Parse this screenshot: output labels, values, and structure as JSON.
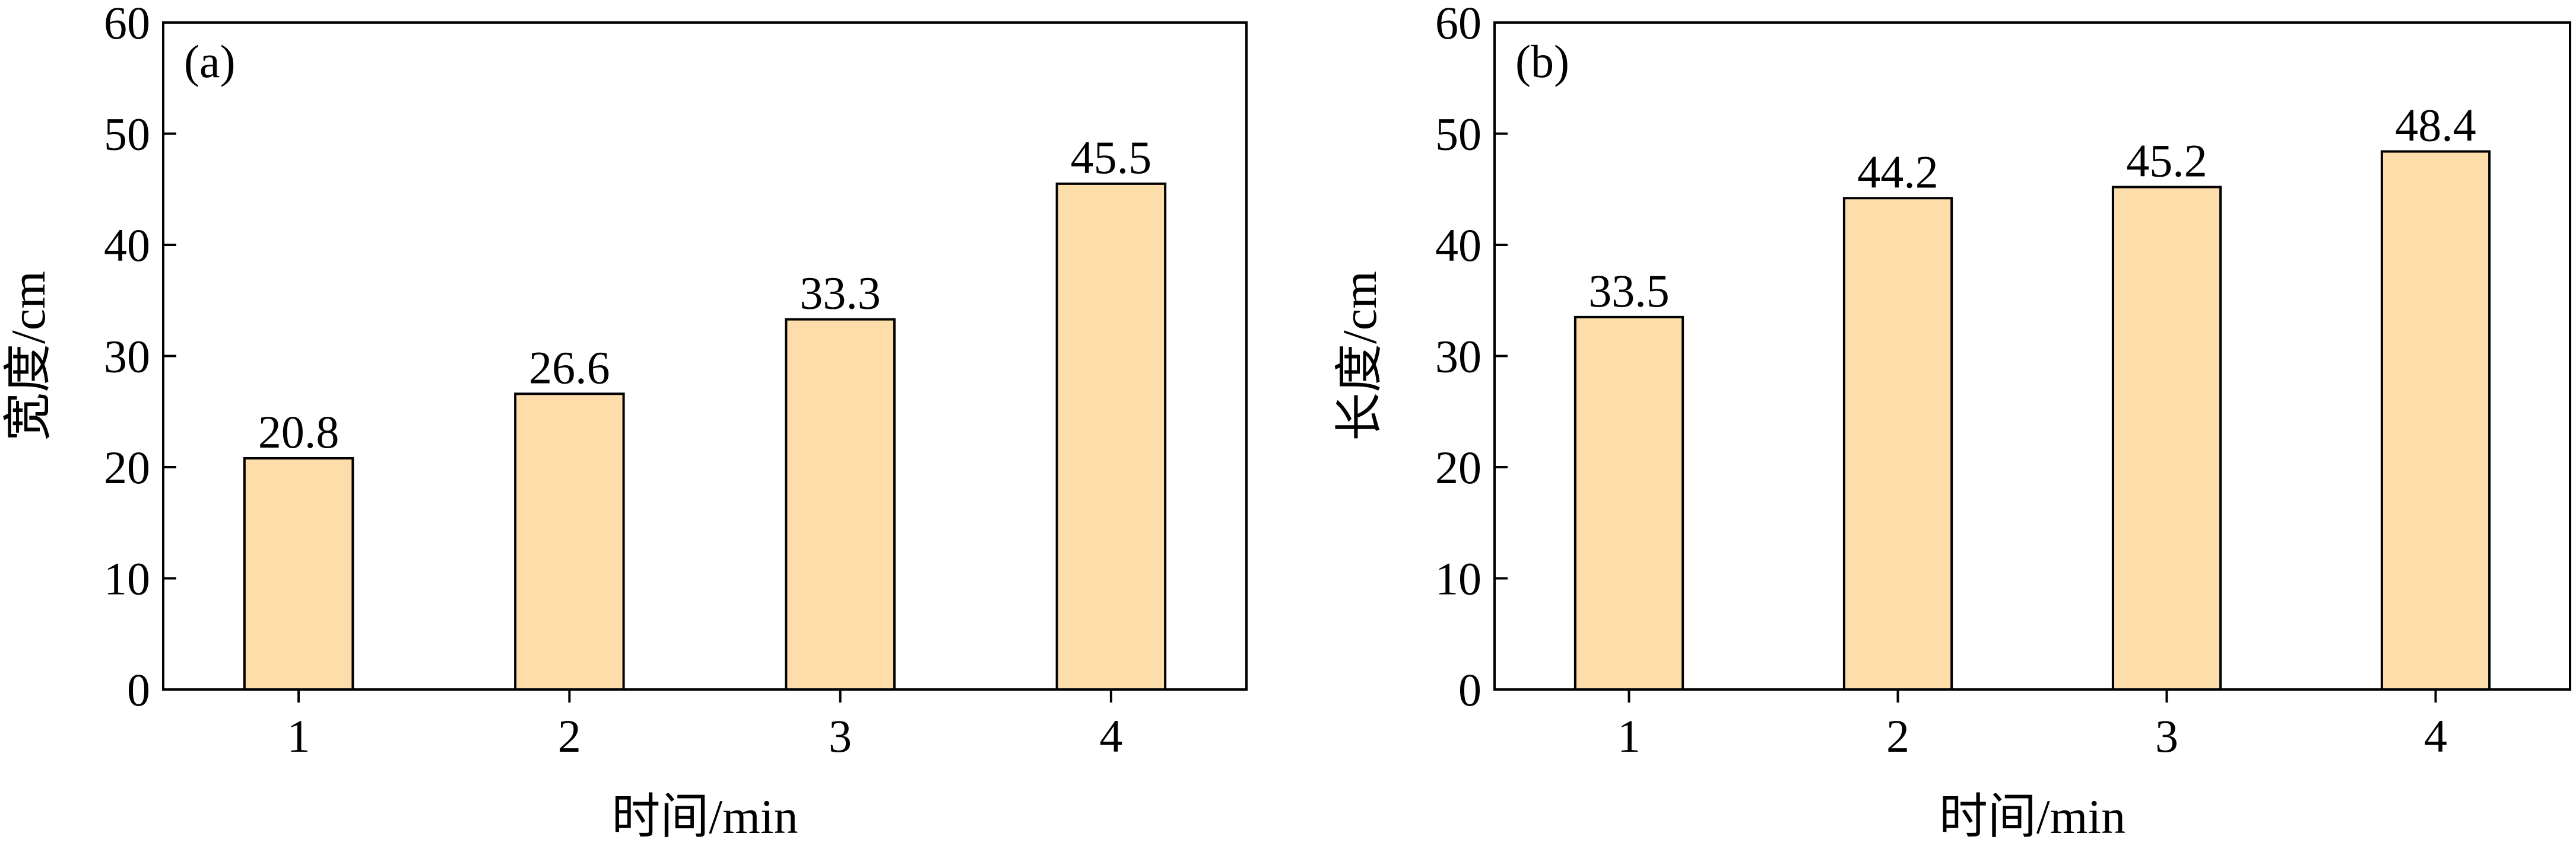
{
  "chart_data": [
    {
      "type": "bar",
      "panel_label": "(a)",
      "categories": [
        "1",
        "2",
        "3",
        "4"
      ],
      "values": [
        20.8,
        26.6,
        33.3,
        45.5
      ],
      "data_labels": [
        "20.8",
        "26.6",
        "33.3",
        "45.5"
      ],
      "xlabel": "时间/min",
      "ylabel": "宽度/cm",
      "ylim": [
        0,
        60
      ],
      "yticks": [
        "0",
        "10",
        "20",
        "30",
        "40",
        "50",
        "60"
      ],
      "grid": false,
      "bar_color": "#FDDDAA",
      "edge_color": "#000000"
    },
    {
      "type": "bar",
      "panel_label": "(b)",
      "categories": [
        "1",
        "2",
        "3",
        "4"
      ],
      "values": [
        33.5,
        44.2,
        45.2,
        48.4
      ],
      "data_labels": [
        "33.5",
        "44.2",
        "45.2",
        "48.4"
      ],
      "xlabel": "时间/min",
      "ylabel": "长度/cm",
      "ylim": [
        0,
        60
      ],
      "yticks": [
        "0",
        "10",
        "20",
        "30",
        "40",
        "50",
        "60"
      ],
      "grid": false,
      "bar_color": "#FDDDAA",
      "edge_color": "#000000"
    }
  ]
}
